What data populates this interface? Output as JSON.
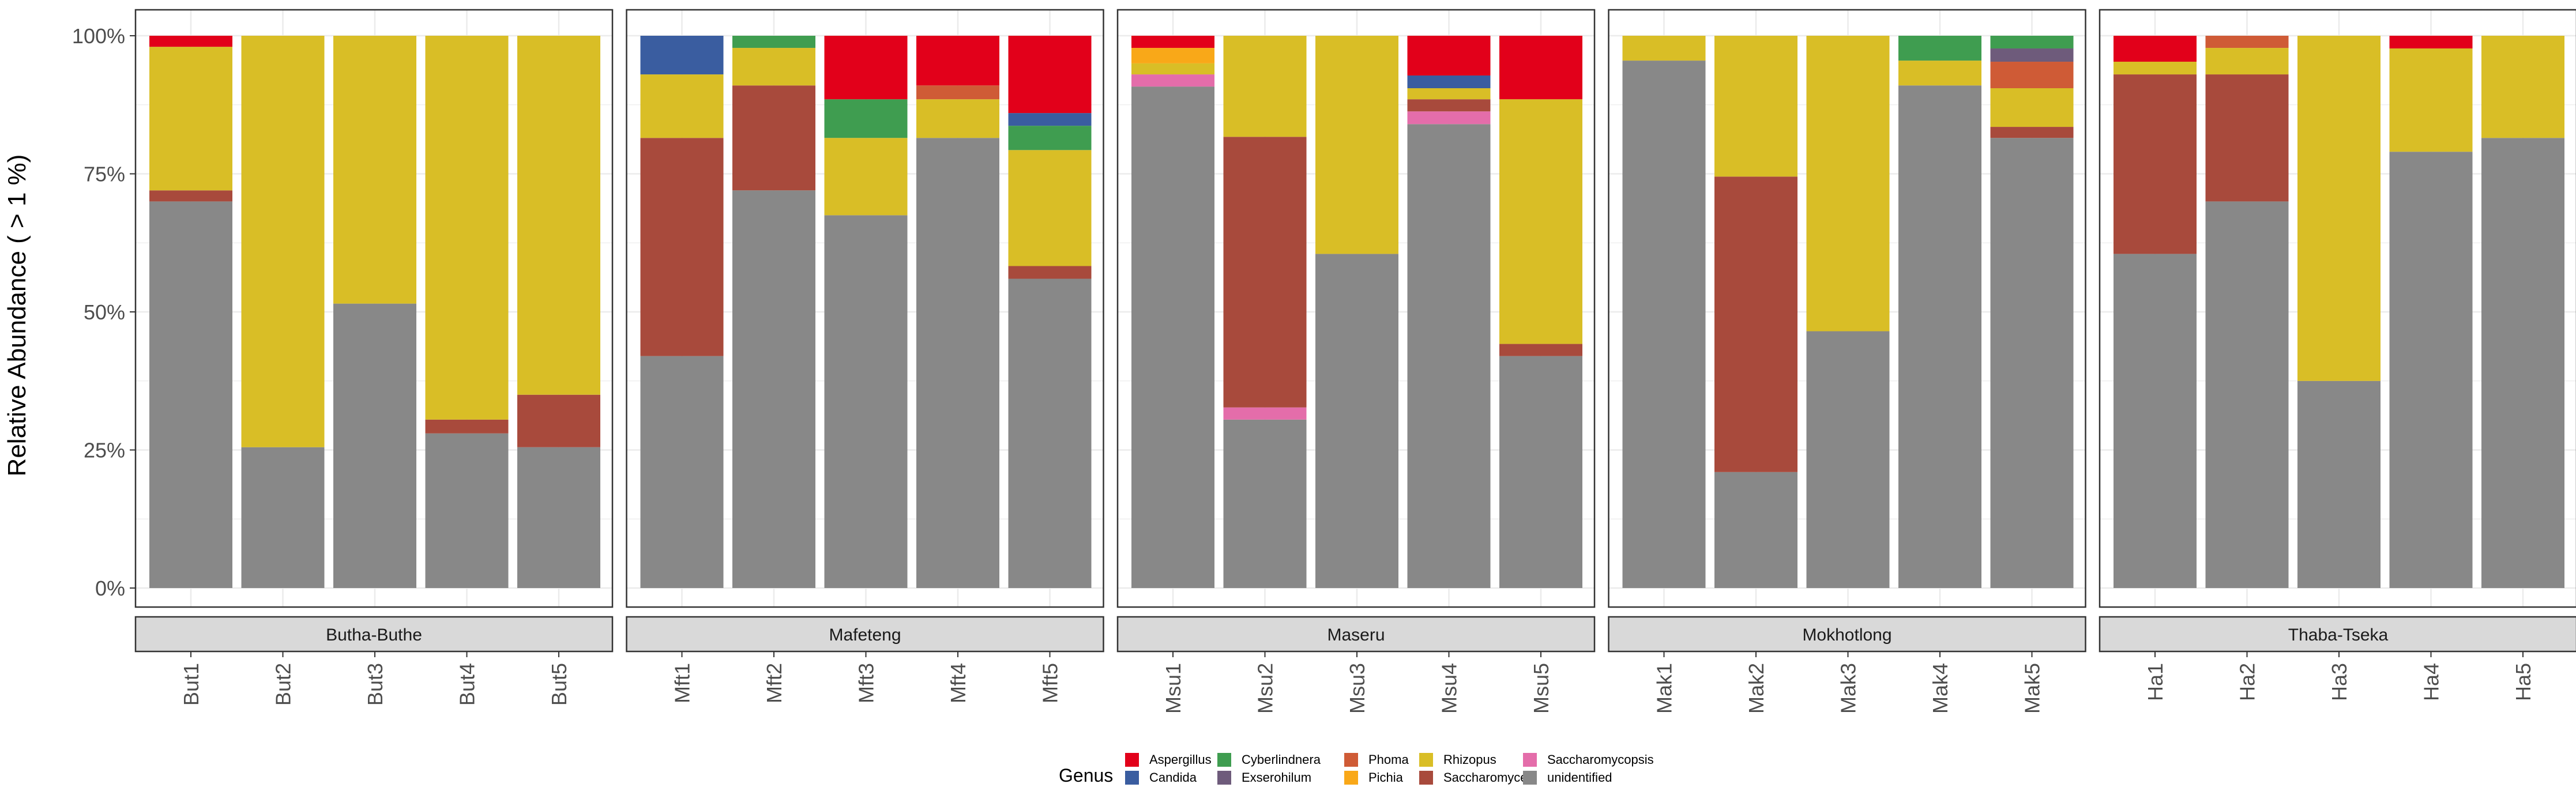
{
  "chart_data": {
    "type": "bar",
    "stacked": true,
    "ylabel": "Relative Abundance ( > 1 %)",
    "xlabel": "",
    "ylim": [
      0,
      100
    ],
    "yticks": [
      {
        "value": 0,
        "label": "0%"
      },
      {
        "value": 25,
        "label": "25%"
      },
      {
        "value": 50,
        "label": "50%"
      },
      {
        "value": 75,
        "label": "75%"
      },
      {
        "value": 100,
        "label": "100%"
      }
    ],
    "grid": true,
    "legend_position": "bottom",
    "legend_title": "Genus",
    "genera": [
      {
        "name": "Aspergillus",
        "color": "#E2001A"
      },
      {
        "name": "Candida",
        "color": "#3A5DA0"
      },
      {
        "name": "Cyberlindnera",
        "color": "#3F9D50"
      },
      {
        "name": "Exserohilum",
        "color": "#6E5B7B"
      },
      {
        "name": "Phoma",
        "color": "#CF5B36"
      },
      {
        "name": "Pichia",
        "color": "#F9A818"
      },
      {
        "name": "Rhizopus",
        "color": "#D9BE26"
      },
      {
        "name": "Saccharomyces",
        "color": "#A84A3C"
      },
      {
        "name": "Saccharomycopsis",
        "color": "#E46DAA"
      },
      {
        "name": "unidentified",
        "color": "#888888"
      }
    ],
    "facets": [
      {
        "name": "Butha-Buthe",
        "samples": [
          {
            "label": "But1",
            "segments": [
              [
                "unidentified",
                70
              ],
              [
                "Saccharomyces",
                2
              ],
              [
                "Rhizopus",
                26
              ],
              [
                "Aspergillus",
                2
              ]
            ]
          },
          {
            "label": "But2",
            "segments": [
              [
                "unidentified",
                25.5
              ],
              [
                "Rhizopus",
                74.5
              ]
            ]
          },
          {
            "label": "But3",
            "segments": [
              [
                "unidentified",
                51.5
              ],
              [
                "Rhizopus",
                48.5
              ]
            ]
          },
          {
            "label": "But4",
            "segments": [
              [
                "unidentified",
                28
              ],
              [
                "Saccharomyces",
                2.5
              ],
              [
                "Rhizopus",
                69.5
              ]
            ]
          },
          {
            "label": "But5",
            "segments": [
              [
                "unidentified",
                25.5
              ],
              [
                "Saccharomyces",
                9.5
              ],
              [
                "Rhizopus",
                65
              ]
            ]
          }
        ]
      },
      {
        "name": "Mafeteng",
        "samples": [
          {
            "label": "Mft1",
            "segments": [
              [
                "unidentified",
                42
              ],
              [
                "Saccharomyces",
                39.5
              ],
              [
                "Rhizopus",
                11.5
              ],
              [
                "Candida",
                7
              ]
            ]
          },
          {
            "label": "Mft2",
            "segments": [
              [
                "unidentified",
                72
              ],
              [
                "Saccharomyces",
                19
              ],
              [
                "Rhizopus",
                6.8
              ],
              [
                "Cyberlindnera",
                2.2
              ]
            ]
          },
          {
            "label": "Mft3",
            "segments": [
              [
                "unidentified",
                67.5
              ],
              [
                "Rhizopus",
                14
              ],
              [
                "Cyberlindnera",
                7
              ],
              [
                "Aspergillus",
                11.5
              ]
            ]
          },
          {
            "label": "Mft4",
            "segments": [
              [
                "unidentified",
                81.5
              ],
              [
                "Rhizopus",
                7
              ],
              [
                "Phoma",
                2.5
              ],
              [
                "Aspergillus",
                9
              ]
            ]
          },
          {
            "label": "Mft5",
            "segments": [
              [
                "unidentified",
                56
              ],
              [
                "Saccharomyces",
                2.3
              ],
              [
                "Rhizopus",
                21
              ],
              [
                "Cyberlindnera",
                4.4
              ],
              [
                "Candida",
                2.3
              ],
              [
                "Aspergillus",
                14
              ]
            ]
          }
        ]
      },
      {
        "name": "Maseru",
        "samples": [
          {
            "label": "Msu1",
            "segments": [
              [
                "unidentified",
                90.8
              ],
              [
                "Saccharomycopsis",
                2.2
              ],
              [
                "Rhizopus",
                2
              ],
              [
                "Pichia",
                2.8
              ],
              [
                "Aspergillus",
                2.2
              ]
            ]
          },
          {
            "label": "Msu2",
            "segments": [
              [
                "unidentified",
                30.5
              ],
              [
                "Saccharomycopsis",
                2.2
              ],
              [
                "Saccharomyces",
                49
              ],
              [
                "Rhizopus",
                18.3
              ]
            ]
          },
          {
            "label": "Msu3",
            "segments": [
              [
                "unidentified",
                60.5
              ],
              [
                "Rhizopus",
                39.5
              ]
            ]
          },
          {
            "label": "Msu4",
            "segments": [
              [
                "unidentified",
                84
              ],
              [
                "Saccharomycopsis",
                2.3
              ],
              [
                "Saccharomyces",
                2.2
              ],
              [
                "Rhizopus",
                2
              ],
              [
                "Candida",
                2.3
              ],
              [
                "Aspergillus",
                7.2
              ]
            ]
          },
          {
            "label": "Msu5",
            "segments": [
              [
                "unidentified",
                42
              ],
              [
                "Saccharomyces",
                2.2
              ],
              [
                "Rhizopus",
                44.3
              ],
              [
                "Aspergillus",
                11.5
              ]
            ]
          }
        ]
      },
      {
        "name": "Mokhotlong",
        "samples": [
          {
            "label": "Mak1",
            "segments": [
              [
                "unidentified",
                95.5
              ],
              [
                "Rhizopus",
                4.5
              ]
            ]
          },
          {
            "label": "Mak2",
            "segments": [
              [
                "unidentified",
                21
              ],
              [
                "Saccharomyces",
                53.5
              ],
              [
                "Rhizopus",
                25.5
              ]
            ]
          },
          {
            "label": "Mak3",
            "segments": [
              [
                "unidentified",
                46.5
              ],
              [
                "Rhizopus",
                53.5
              ]
            ]
          },
          {
            "label": "Mak4",
            "segments": [
              [
                "unidentified",
                91
              ],
              [
                "Rhizopus",
                4.5
              ],
              [
                "Cyberlindnera",
                4.5
              ]
            ]
          },
          {
            "label": "Mak5",
            "segments": [
              [
                "unidentified",
                81.5
              ],
              [
                "Saccharomyces",
                2
              ],
              [
                "Rhizopus",
                7
              ],
              [
                "Phoma",
                4.8
              ],
              [
                "Exserohilum",
                2.4
              ],
              [
                "Cyberlindnera",
                2.3
              ]
            ]
          }
        ]
      },
      {
        "name": "Thaba-Tseka",
        "samples": [
          {
            "label": "Ha1",
            "segments": [
              [
                "unidentified",
                60.5
              ],
              [
                "Saccharomyces",
                32.5
              ],
              [
                "Rhizopus",
                2.3
              ],
              [
                "Aspergillus",
                4.7
              ]
            ]
          },
          {
            "label": "Ha2",
            "segments": [
              [
                "unidentified",
                70
              ],
              [
                "Saccharomyces",
                23
              ],
              [
                "Rhizopus",
                4.8
              ],
              [
                "Phoma",
                2.2
              ]
            ]
          },
          {
            "label": "Ha3",
            "segments": [
              [
                "unidentified",
                37.5
              ],
              [
                "Rhizopus",
                62.5
              ]
            ]
          },
          {
            "label": "Ha4",
            "segments": [
              [
                "unidentified",
                79
              ],
              [
                "Rhizopus",
                18.7
              ],
              [
                "Aspergillus",
                2.3
              ]
            ]
          },
          {
            "label": "Ha5",
            "segments": [
              [
                "unidentified",
                81.5
              ],
              [
                "Rhizopus",
                18.5
              ]
            ]
          }
        ]
      }
    ]
  }
}
